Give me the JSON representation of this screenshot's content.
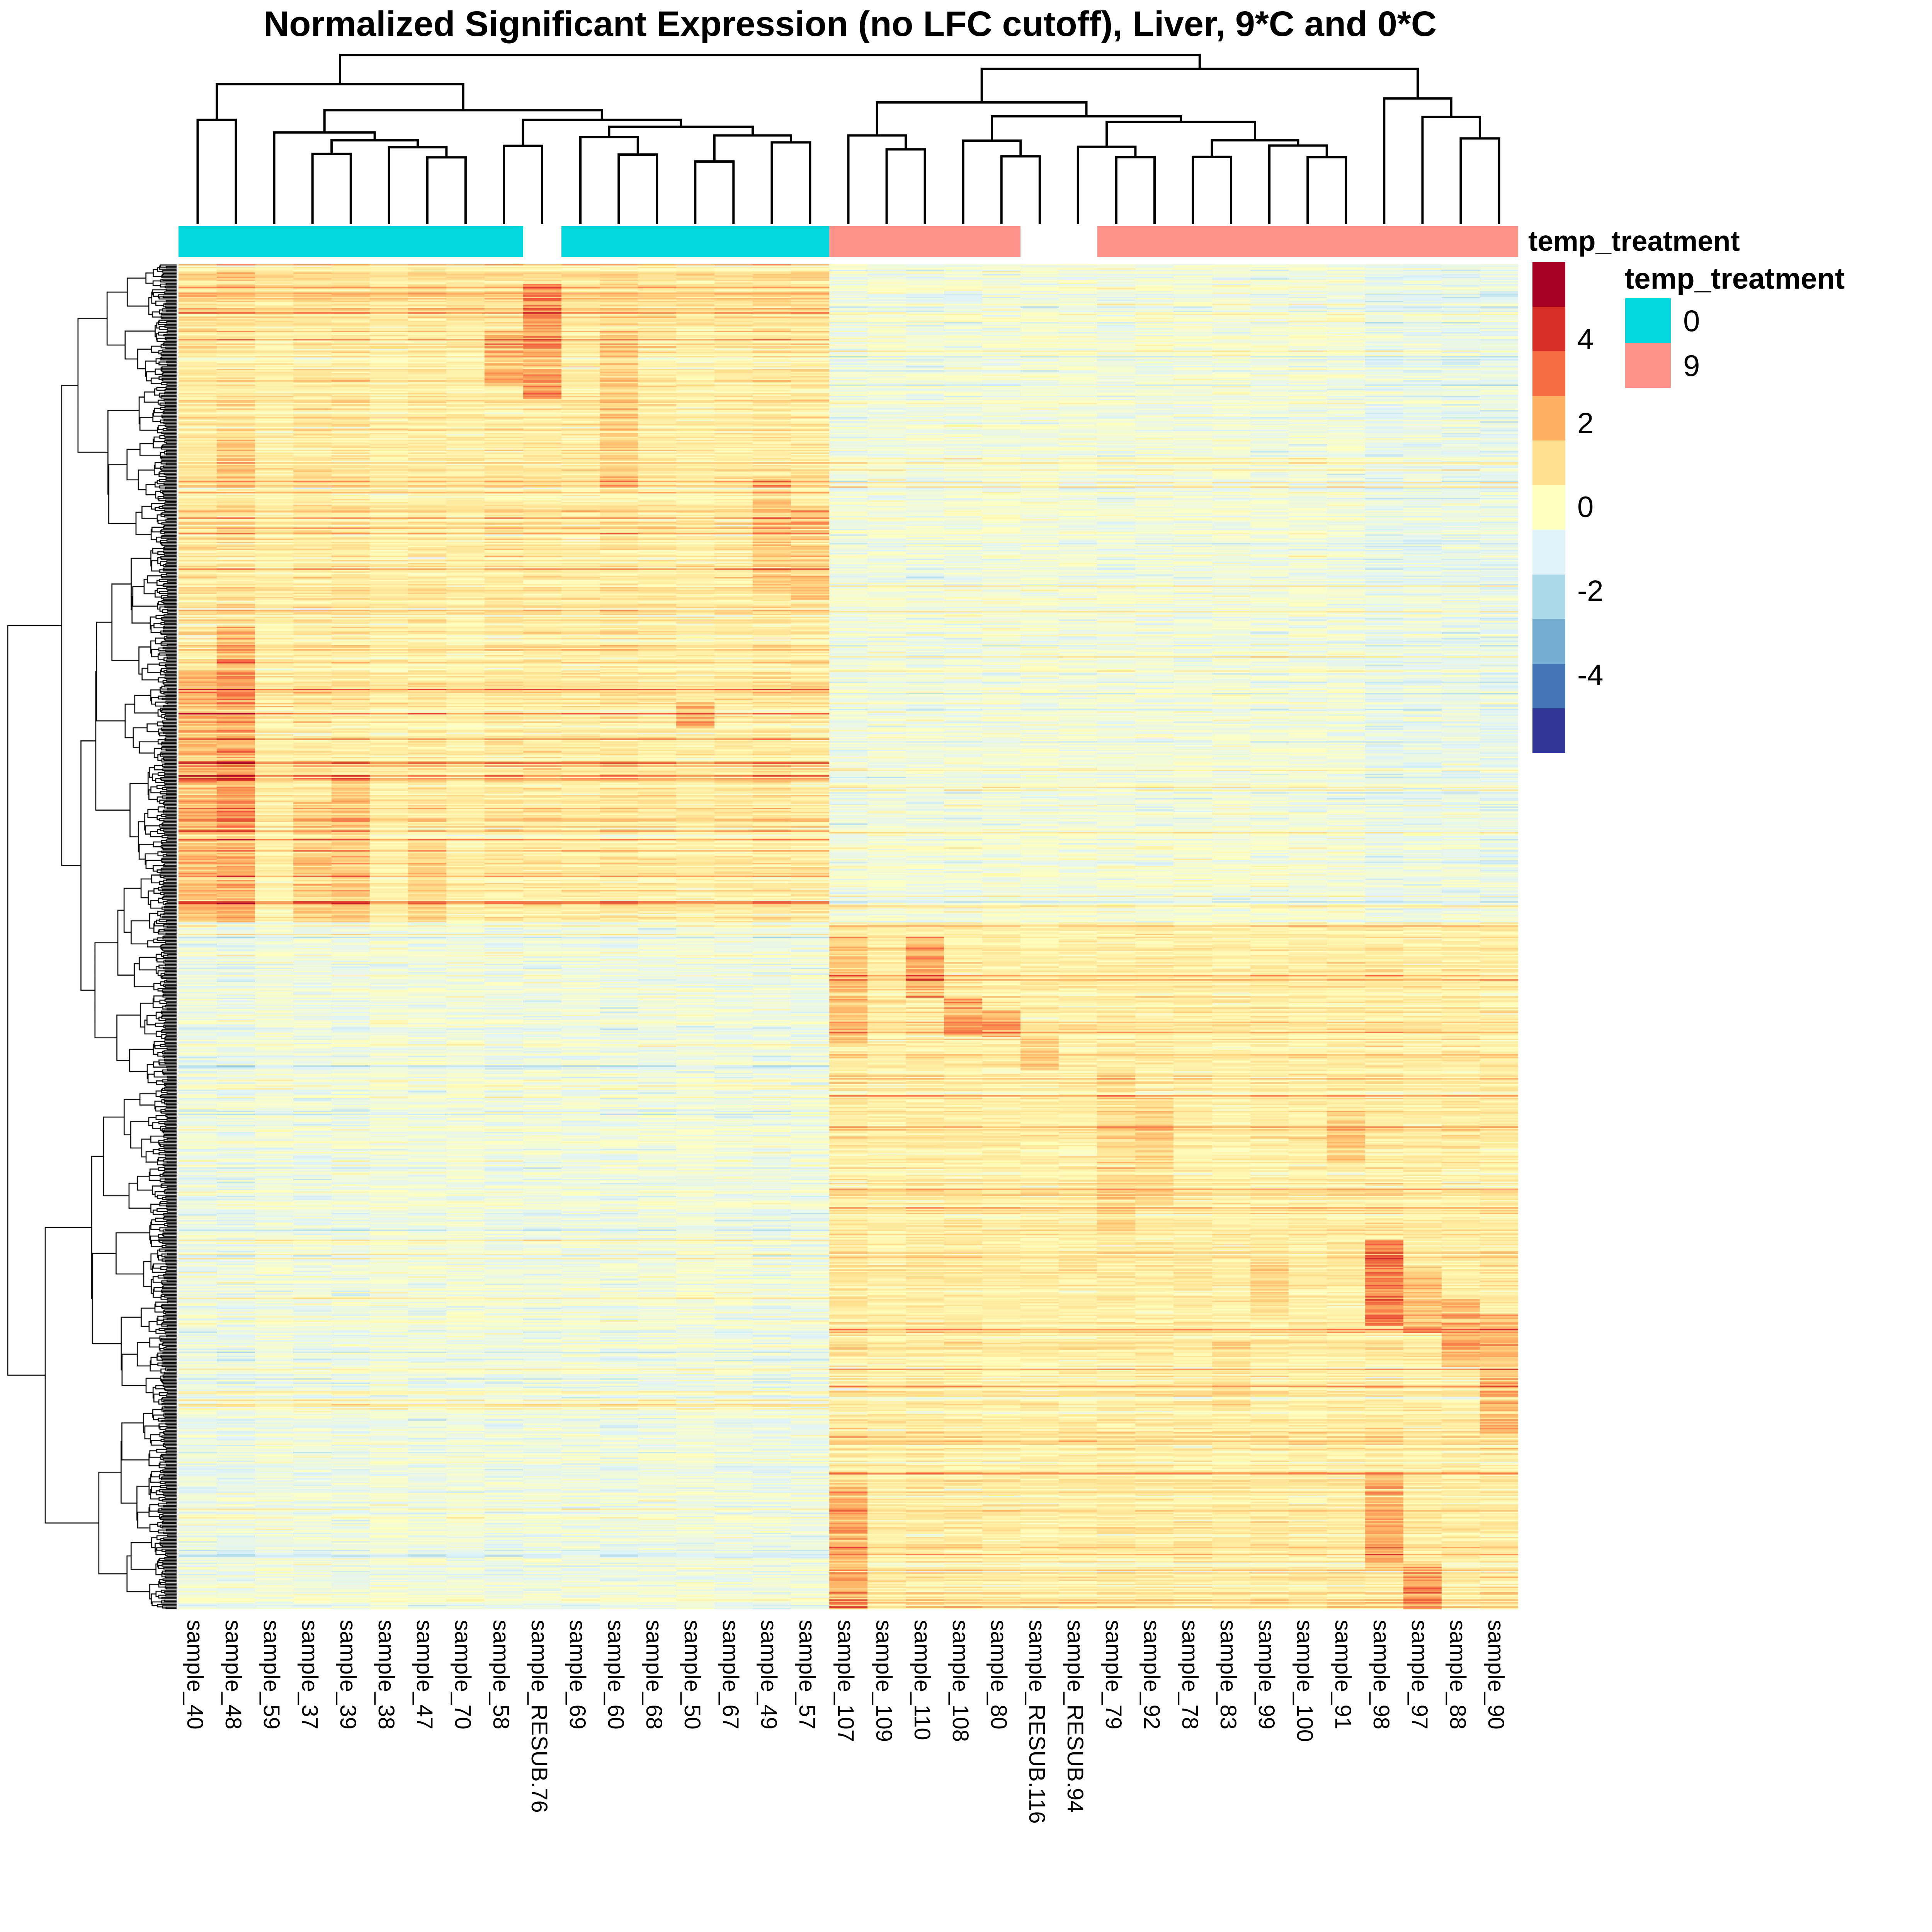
{
  "chart_data": {
    "type": "heatmap",
    "title": "Normalized Significant Expression (no LFC cutoff), Liver, 9*C and 0*C",
    "columns": [
      "sample_40",
      "sample_48",
      "sample_59",
      "sample_37",
      "sample_39",
      "sample_38",
      "sample_47",
      "sample_70",
      "sample_58",
      "sample_RESUB.76",
      "sample_69",
      "sample_60",
      "sample_68",
      "sample_50",
      "sample_67",
      "sample_49",
      "sample_57",
      "sample_107",
      "sample_109",
      "sample_110",
      "sample_108",
      "sample_80",
      "sample_RESUB.116",
      "sample_RESUB.94",
      "sample_79",
      "sample_92",
      "sample_78",
      "sample_83",
      "sample_99",
      "sample_100",
      "sample_91",
      "sample_98",
      "sample_97",
      "sample_88",
      "sample_90"
    ],
    "column_annotation": {
      "name": "temp_treatment",
      "values": [
        "0",
        "0",
        "0",
        "0",
        "0",
        "0",
        "0",
        "0",
        "0",
        null,
        "0",
        "0",
        "0",
        "0",
        "0",
        "0",
        "0",
        "9",
        "9",
        "9",
        "9",
        "9",
        null,
        null,
        "9",
        "9",
        "9",
        "9",
        "9",
        "9",
        "9",
        "9",
        "9",
        "9",
        "9"
      ]
    },
    "annotation_colors": {
      "0": "#04D8DF",
      "9": "#FC928A",
      "missing": "#FFFFFF"
    },
    "colorbar": {
      "vmin": -5.85,
      "vmax": 5.85,
      "tick_values": [
        4,
        2,
        0,
        -2,
        -4
      ],
      "tick_labels": [
        "4",
        "2",
        "0",
        "-2",
        "-4"
      ],
      "palette_low_to_high": [
        "#313695",
        "#4575B4",
        "#74ADD1",
        "#ABD9E9",
        "#E0F3F8",
        "#FFFFBF",
        "#FEE090",
        "#FDAE61",
        "#F46D43",
        "#D73027",
        "#A50026"
      ]
    },
    "legend": {
      "title": "temp_treatment",
      "items": [
        {
          "label": "0"
        },
        {
          "label": "9"
        }
      ]
    },
    "rows": {
      "count": 950,
      "split_fraction": 0.49
    },
    "pattern": {
      "top_block": {
        "cold_mean": 0.7,
        "cold_sd": 0.5,
        "warm_mean": -0.38,
        "warm_sd": 0.28
      },
      "bottom_block": {
        "cold_mean": -0.52,
        "cold_sd": 0.28,
        "warm_mean": 0.6,
        "warm_sd": 0.42
      },
      "cold_gains": [
        1.12,
        1.25,
        0.82,
        1.02,
        1.08,
        0.78,
        1.0,
        0.78,
        1.02,
        0.98,
        0.95,
        1.08,
        0.98,
        0.8,
        0.98,
        1.1,
        1.05
      ],
      "warm_gains": [
        1.2,
        0.95,
        1.1,
        1.05,
        0.92,
        0.88,
        0.92,
        1.02,
        0.98,
        1.02,
        0.88,
        0.98,
        0.95,
        1.02,
        1.15,
        0.95,
        1.0,
        1.05
      ],
      "hotspots": [
        [
          1,
          0.3,
          0.49,
          1.1
        ],
        [
          2,
          0.27,
          0.49,
          1.5
        ],
        [
          2,
          0.13,
          0.16,
          0.8
        ],
        [
          4,
          0.4,
          0.49,
          0.8
        ],
        [
          5,
          0.38,
          0.49,
          0.9
        ],
        [
          7,
          0.43,
          0.49,
          0.7
        ],
        [
          9,
          0.05,
          0.09,
          1.4
        ],
        [
          10,
          0.015,
          0.1,
          1.8
        ],
        [
          12,
          0.05,
          0.17,
          0.7
        ],
        [
          14,
          0.325,
          0.345,
          1.7
        ],
        [
          16,
          0.16,
          0.24,
          0.9
        ],
        [
          17,
          0.18,
          0.25,
          0.8
        ],
        [
          18,
          0.5,
          0.58,
          1.1
        ],
        [
          18,
          0.91,
          1.0,
          1.4
        ],
        [
          20,
          0.5,
          0.545,
          1.5
        ],
        [
          21,
          0.545,
          0.575,
          1.7
        ],
        [
          22,
          0.555,
          0.575,
          1.5
        ],
        [
          23,
          0.57,
          0.6,
          0.9
        ],
        [
          25,
          0.6,
          0.72,
          0.6
        ],
        [
          26,
          0.62,
          0.7,
          0.7
        ],
        [
          28,
          0.8,
          0.85,
          0.6
        ],
        [
          29,
          0.74,
          0.78,
          0.7
        ],
        [
          31,
          0.63,
          0.67,
          1.0
        ],
        [
          32,
          0.725,
          0.79,
          2.4
        ],
        [
          32,
          0.9,
          0.97,
          1.5
        ],
        [
          33,
          0.745,
          0.795,
          1.2
        ],
        [
          33,
          0.965,
          1.0,
          1.9
        ],
        [
          34,
          0.77,
          0.82,
          1.5
        ],
        [
          35,
          0.78,
          0.87,
          1.4
        ]
      ],
      "seed": 7
    },
    "col_dendrogram": [
      0.027,
      [
        0.195,
        [
          0.4,
          1,
          2
        ],
        [
          0.345,
          [
            0.473,
            3,
            [
              0.518,
              [
                0.596,
                4,
                5
              ],
              [
                0.558,
                6,
                [
                  0.616,
                  7,
                  8
                ]
              ]
            ]
          ],
          [
            0.4,
            [
              0.55,
              9,
              10
            ],
            [
              0.44,
              [
                0.5,
                11,
                [
                  0.6,
                  12,
                  13
                ]
              ],
              [
                0.49,
                [
                  0.64,
                  14,
                  15
                ],
                [
                  0.53,
                  16,
                  17
                ]
              ]
            ]
          ]
        ]
      ],
      [
        0.107,
        [
          0.3,
          [
            0.49,
            18,
            [
              0.57,
              19,
              20
            ]
          ],
          [
            0.38,
            [
              0.52,
              21,
              [
                0.61,
                22,
                23
              ]
            ],
            [
              0.413,
              [
                0.555,
                24,
                [
                  0.615,
                  25,
                  26
                ]
              ],
              [
                0.518,
                [
                  0.613,
                  27,
                  28
                ],
                [
                  0.548,
                  29,
                  [
                    0.615,
                    30,
                    31
                  ]
                ]
              ]
            ]
          ]
        ],
        [
          0.277,
          32,
          [
            0.384,
            33,
            [
              0.507,
              34,
              35
            ]
          ]
        ]
      ]
    ]
  }
}
